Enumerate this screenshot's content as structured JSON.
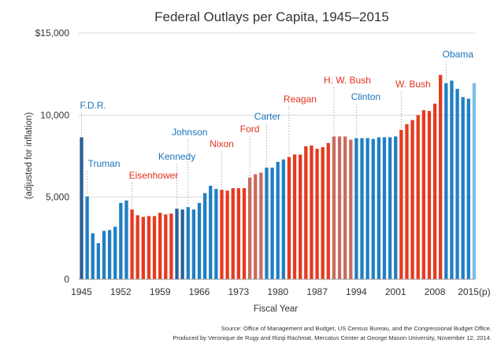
{
  "chart_data": {
    "type": "bar",
    "title": "Federal Outlays per Capita, 1945–2015",
    "xlabel": "Fiscal Year",
    "ylabel": "(adjusted for inflation)",
    "ylim": [
      0,
      15000
    ],
    "yticks": [
      {
        "value": 0,
        "label": "0"
      },
      {
        "value": 5000,
        "label": "5,000"
      },
      {
        "value": 10000,
        "label": "10,000"
      },
      {
        "value": 15000,
        "label": "$15,000"
      }
    ],
    "xticks": [
      {
        "year": 1945,
        "label": "1945"
      },
      {
        "year": 1952,
        "label": "1952"
      },
      {
        "year": 1959,
        "label": "1959"
      },
      {
        "year": 1966,
        "label": "1966"
      },
      {
        "year": 1973,
        "label": "1973"
      },
      {
        "year": 1980,
        "label": "1980"
      },
      {
        "year": 1987,
        "label": "1987"
      },
      {
        "year": 1994,
        "label": "1994"
      },
      {
        "year": 2001,
        "label": "2001"
      },
      {
        "year": 2008,
        "label": "2008"
      },
      {
        "year": 2015,
        "label": "2015(p)"
      }
    ],
    "bars": [
      {
        "year": 1945,
        "value": 8650,
        "president": "F.D.R."
      },
      {
        "year": 1946,
        "value": 5050,
        "president": "Truman"
      },
      {
        "year": 1947,
        "value": 2800,
        "president": "Truman"
      },
      {
        "year": 1948,
        "value": 2200,
        "president": "Truman"
      },
      {
        "year": 1949,
        "value": 2950,
        "president": "Truman"
      },
      {
        "year": 1950,
        "value": 3000,
        "president": "Truman"
      },
      {
        "year": 1951,
        "value": 3200,
        "president": "Truman"
      },
      {
        "year": 1952,
        "value": 4650,
        "president": "Truman"
      },
      {
        "year": 1953,
        "value": 4800,
        "president": "Truman"
      },
      {
        "year": 1954,
        "value": 4250,
        "president": "Eisenhower"
      },
      {
        "year": 1955,
        "value": 3900,
        "president": "Eisenhower"
      },
      {
        "year": 1956,
        "value": 3800,
        "president": "Eisenhower"
      },
      {
        "year": 1957,
        "value": 3850,
        "president": "Eisenhower"
      },
      {
        "year": 1958,
        "value": 3850,
        "president": "Eisenhower"
      },
      {
        "year": 1959,
        "value": 4050,
        "president": "Eisenhower"
      },
      {
        "year": 1960,
        "value": 3950,
        "president": "Eisenhower"
      },
      {
        "year": 1961,
        "value": 4000,
        "president": "Eisenhower"
      },
      {
        "year": 1962,
        "value": 4300,
        "president": "Kennedy"
      },
      {
        "year": 1963,
        "value": 4250,
        "president": "Kennedy"
      },
      {
        "year": 1964,
        "value": 4400,
        "president": "Johnson"
      },
      {
        "year": 1965,
        "value": 4250,
        "president": "Johnson"
      },
      {
        "year": 1966,
        "value": 4650,
        "president": "Johnson"
      },
      {
        "year": 1967,
        "value": 5250,
        "president": "Johnson"
      },
      {
        "year": 1968,
        "value": 5700,
        "president": "Johnson"
      },
      {
        "year": 1969,
        "value": 5500,
        "president": "Johnson"
      },
      {
        "year": 1970,
        "value": 5450,
        "president": "Nixon"
      },
      {
        "year": 1971,
        "value": 5400,
        "president": "Nixon"
      },
      {
        "year": 1972,
        "value": 5550,
        "president": "Nixon"
      },
      {
        "year": 1973,
        "value": 5550,
        "president": "Nixon"
      },
      {
        "year": 1974,
        "value": 5550,
        "president": "Nixon"
      },
      {
        "year": 1975,
        "value": 6200,
        "president": "Ford"
      },
      {
        "year": 1976,
        "value": 6400,
        "president": "Ford"
      },
      {
        "year": 1977,
        "value": 6500,
        "president": "Ford"
      },
      {
        "year": 1978,
        "value": 6800,
        "president": "Carter"
      },
      {
        "year": 1979,
        "value": 6800,
        "president": "Carter"
      },
      {
        "year": 1980,
        "value": 7150,
        "president": "Carter"
      },
      {
        "year": 1981,
        "value": 7300,
        "president": "Carter"
      },
      {
        "year": 1982,
        "value": 7450,
        "president": "Reagan"
      },
      {
        "year": 1983,
        "value": 7600,
        "president": "Reagan"
      },
      {
        "year": 1984,
        "value": 7600,
        "president": "Reagan"
      },
      {
        "year": 1985,
        "value": 8100,
        "president": "Reagan"
      },
      {
        "year": 1986,
        "value": 8150,
        "president": "Reagan"
      },
      {
        "year": 1987,
        "value": 7950,
        "president": "Reagan"
      },
      {
        "year": 1988,
        "value": 8050,
        "president": "Reagan"
      },
      {
        "year": 1989,
        "value": 8300,
        "president": "Reagan"
      },
      {
        "year": 1990,
        "value": 8700,
        "president": "H. W. Bush"
      },
      {
        "year": 1991,
        "value": 8700,
        "president": "H. W. Bush"
      },
      {
        "year": 1992,
        "value": 8700,
        "president": "H. W. Bush"
      },
      {
        "year": 1993,
        "value": 8500,
        "president": "H. W. Bush"
      },
      {
        "year": 1994,
        "value": 8600,
        "president": "Clinton"
      },
      {
        "year": 1995,
        "value": 8600,
        "president": "Clinton"
      },
      {
        "year": 1996,
        "value": 8600,
        "president": "Clinton"
      },
      {
        "year": 1997,
        "value": 8550,
        "president": "Clinton"
      },
      {
        "year": 1998,
        "value": 8650,
        "president": "Clinton"
      },
      {
        "year": 1999,
        "value": 8650,
        "president": "Clinton"
      },
      {
        "year": 2000,
        "value": 8650,
        "president": "Clinton"
      },
      {
        "year": 2001,
        "value": 8700,
        "president": "Clinton"
      },
      {
        "year": 2002,
        "value": 9100,
        "president": "W. Bush"
      },
      {
        "year": 2003,
        "value": 9450,
        "president": "W. Bush"
      },
      {
        "year": 2004,
        "value": 9700,
        "president": "W. Bush"
      },
      {
        "year": 2005,
        "value": 10000,
        "president": "W. Bush"
      },
      {
        "year": 2006,
        "value": 10300,
        "president": "W. Bush"
      },
      {
        "year": 2007,
        "value": 10250,
        "president": "W. Bush"
      },
      {
        "year": 2008,
        "value": 10700,
        "president": "W. Bush"
      },
      {
        "year": 2009,
        "value": 12450,
        "president": "W. Bush"
      },
      {
        "year": 2010,
        "value": 11950,
        "president": "Obama"
      },
      {
        "year": 2011,
        "value": 12100,
        "president": "Obama"
      },
      {
        "year": 2012,
        "value": 11600,
        "president": "Obama"
      },
      {
        "year": 2013,
        "value": 11100,
        "president": "Obama"
      },
      {
        "year": 2014,
        "value": 11000,
        "president": "Obama"
      },
      {
        "year": 2015,
        "value": 11950,
        "president": "Obama",
        "projected": true
      }
    ],
    "presidents": [
      {
        "name": "F.D.R.",
        "party": "D",
        "first_year": 1945
      },
      {
        "name": "Truman",
        "party": "D",
        "first_year": 1946
      },
      {
        "name": "Eisenhower",
        "party": "R",
        "first_year": 1954
      },
      {
        "name": "Kennedy",
        "party": "D",
        "first_year": 1962
      },
      {
        "name": "Johnson",
        "party": "D",
        "first_year": 1964
      },
      {
        "name": "Nixon",
        "party": "R",
        "first_year": 1970
      },
      {
        "name": "Ford",
        "party": "R",
        "first_year": 1975
      },
      {
        "name": "Carter",
        "party": "D",
        "first_year": 1978
      },
      {
        "name": "Reagan",
        "party": "R",
        "first_year": 1982
      },
      {
        "name": "H. W. Bush",
        "party": "R",
        "first_year": 1990
      },
      {
        "name": "Clinton",
        "party": "D",
        "first_year": 1994
      },
      {
        "name": "W. Bush",
        "party": "R",
        "first_year": 2002
      },
      {
        "name": "Obama",
        "party": "D",
        "first_year": 2010
      }
    ],
    "colors": {
      "democrat": "#1f7fc4",
      "democrat_alt": "#2a5f96",
      "republican": "#e63a1f",
      "republican_alt": "#c96b5f",
      "projected": "#79c0ea",
      "label_democrat": "#1a75bc",
      "label_republican": "#e3321c",
      "grid": "#d9d9d9",
      "axis_text": "#333333"
    },
    "grid": true,
    "source_lines": [
      "Source: Office of Management and Budget, US Census Bureau, and the Congressional Budget Office.",
      "Produced by Veronique de Rugy and Rizqi Rachmat, Mercatus Center at George Mason University, November 12, 2014."
    ]
  }
}
